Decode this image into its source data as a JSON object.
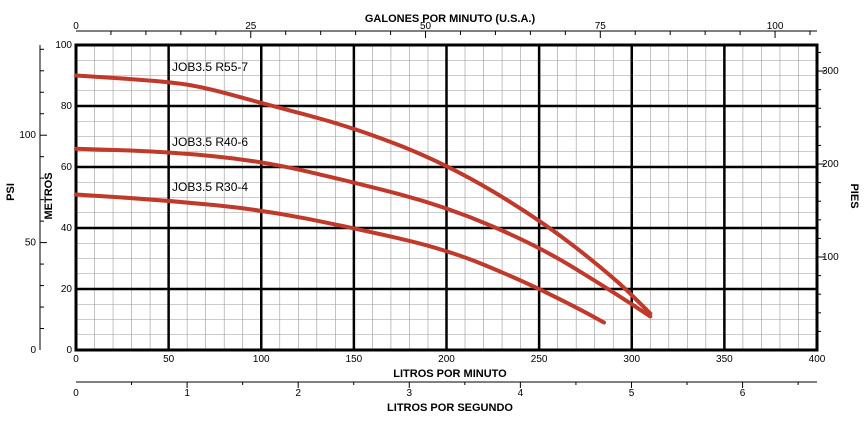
{
  "chart_data": {
    "type": "line",
    "title": "",
    "x_axes": {
      "bottom_primary": {
        "label": "LITROS POR MINUTO",
        "range": [
          0,
          400
        ],
        "ticks": [
          "0",
          "50",
          "100",
          "150",
          "200",
          "250",
          "300",
          "350",
          "400"
        ]
      },
      "top": {
        "label": "GALONES POR MINUTO (U.S.A.)",
        "range": [
          0,
          106
        ],
        "ticks": [
          "0",
          "25",
          "50",
          "75",
          "100"
        ]
      },
      "bottom_secondary": {
        "label": "LITROS POR SEGUNDO",
        "range": [
          0,
          6.67
        ],
        "ticks": [
          "0",
          "1",
          "2",
          "3",
          "4",
          "5",
          "6"
        ]
      }
    },
    "y_axes": {
      "metros": {
        "label": "METROS",
        "range": [
          0,
          100
        ],
        "ticks": [
          "0",
          "20",
          "40",
          "60",
          "80",
          "100"
        ]
      },
      "psi": {
        "label": "PSI",
        "range": [
          0,
          142
        ],
        "ticks": [
          "0",
          "50",
          "100"
        ]
      },
      "pies": {
        "label": "PIES",
        "range": [
          0,
          328
        ],
        "ticks": [
          "100",
          "200",
          "300"
        ]
      }
    },
    "grid": true,
    "series": [
      {
        "name": "JOB3.5 R55-7",
        "color": "#c0392b",
        "x": [
          0,
          50,
          70,
          100,
          150,
          200,
          250,
          290,
          310
        ],
        "y": [
          90,
          88,
          86,
          81,
          73,
          61,
          43,
          24,
          12
        ]
      },
      {
        "name": "JOB3.5 R40-6",
        "color": "#c0392b",
        "x": [
          0,
          50,
          100,
          150,
          200,
          250,
          290,
          310
        ],
        "y": [
          66,
          65,
          62,
          55,
          47,
          34,
          19,
          11
        ]
      },
      {
        "name": "JOB3.5 R30-4",
        "color": "#c0392b",
        "x": [
          0,
          50,
          100,
          150,
          200,
          240,
          270,
          285
        ],
        "y": [
          51,
          49,
          46,
          40,
          33,
          23,
          14,
          9
        ]
      }
    ]
  }
}
